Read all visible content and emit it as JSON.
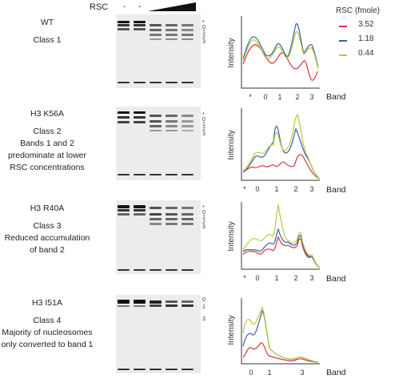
{
  "header": {
    "rsc_label": "RSC",
    "minus1": "-",
    "minus2": "-"
  },
  "legend": {
    "title": "RSC (fmole)",
    "items": [
      {
        "label": "3.52",
        "color": "#d9343c"
      },
      {
        "label": "1.18",
        "color": "#3b5fa8"
      },
      {
        "label": "0.44",
        "color": "#b4cc3a"
      }
    ]
  },
  "panels": [
    {
      "name": "WT",
      "class": "Class 1",
      "desc": [],
      "band_labels": [
        "*",
        "0",
        "1",
        "2",
        "3"
      ],
      "axis": {
        "ylabel": "Intensity",
        "xlabel": "Band",
        "ticks": [
          "*",
          "0",
          "1",
          "2",
          "3"
        ]
      }
    },
    {
      "name": "H3 K56A",
      "class": "Class 2",
      "desc": [
        "Bands 1 and 2",
        "predominate at lower",
        "RSC concentrations"
      ],
      "band_labels": [
        "*",
        "0",
        "1",
        "2",
        "3"
      ],
      "axis": {
        "ylabel": "Intensity",
        "xlabel": "Band",
        "ticks": [
          "*",
          "0",
          "1",
          "2",
          "3"
        ]
      }
    },
    {
      "name": "H3 R40A",
      "class": "Class 3",
      "desc": [
        "Reduced accumulation",
        "of band 2"
      ],
      "band_labels": [
        "*",
        "0",
        "1",
        "2",
        "3"
      ],
      "axis": {
        "ylabel": "Intensity",
        "xlabel": "Band",
        "ticks": [
          "*",
          "0",
          "1",
          "2",
          "3"
        ]
      }
    },
    {
      "name": "H3 I51A",
      "class": "Class 4",
      "desc": [
        "Majority of nucleosomes",
        "only converted to band 1"
      ],
      "band_labels": [
        "0",
        "1",
        "3"
      ],
      "axis": {
        "ylabel": "Intensity",
        "xlabel": "Band",
        "ticks": [
          "0",
          "1",
          "3"
        ]
      }
    }
  ]
}
